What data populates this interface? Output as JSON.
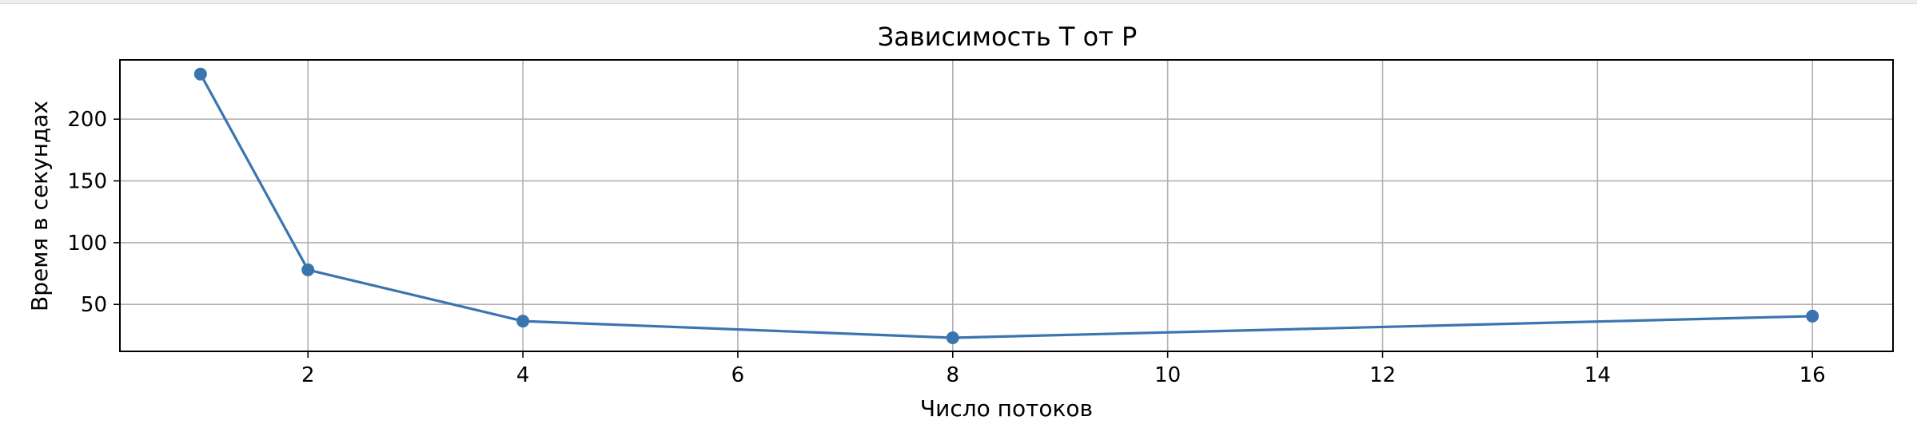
{
  "chart_data": {
    "type": "line",
    "title": "Зависимость T от P",
    "xlabel": "Число потоков",
    "ylabel": "Время в секундах",
    "x": [
      1,
      2,
      4,
      8,
      16
    ],
    "series": [
      {
        "values": [
          236.5,
          78,
          36.5,
          23,
          40.5
        ],
        "color": "#3a75af",
        "marker": "circle"
      }
    ],
    "xlim": [
      0.25,
      16.75
    ],
    "ylim": [
      12,
      248
    ],
    "xticks": [
      2,
      4,
      6,
      8,
      10,
      12,
      14,
      16
    ],
    "yticks": [
      50,
      100,
      150,
      200
    ],
    "grid": true,
    "colors": {
      "grid": "#b0b0b0",
      "axes": "#000000",
      "line": "#3a75af"
    }
  }
}
